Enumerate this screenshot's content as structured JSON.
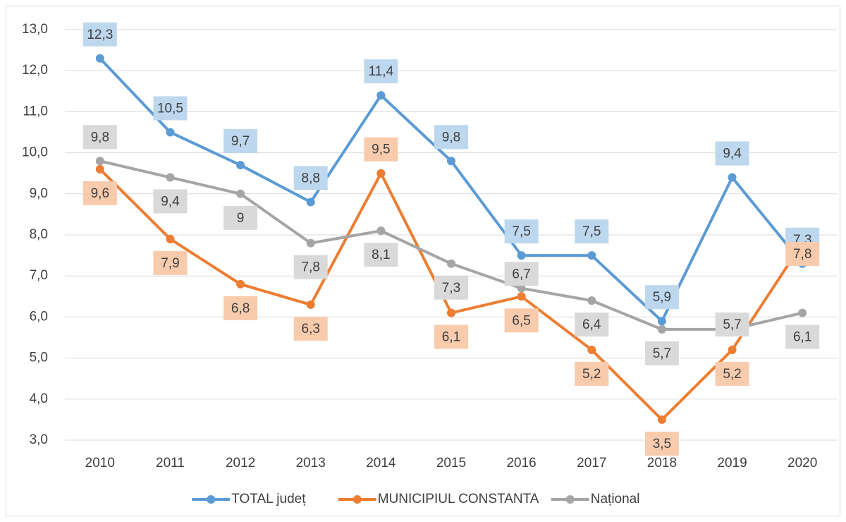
{
  "chart_data": {
    "type": "line",
    "categories": [
      "2010",
      "2011",
      "2012",
      "2013",
      "2014",
      "2015",
      "2016",
      "2017",
      "2018",
      "2019",
      "2020"
    ],
    "series": [
      {
        "name": "TOTAL județ",
        "color": "#5b9bd5",
        "label_fill": "#bdd7ee",
        "values": [
          12.3,
          10.5,
          9.7,
          8.8,
          11.4,
          9.8,
          7.5,
          7.5,
          5.9,
          9.4,
          7.3
        ],
        "value_labels": [
          "12,3",
          "10,5",
          "9,7",
          "8,8",
          "11,4",
          "9,8",
          "7,5",
          "7,5",
          "5,9",
          "9,4",
          "7,3"
        ]
      },
      {
        "name": "MUNICIPIUL CONSTANTA",
        "color": "#ed7d31",
        "label_fill": "#f8cbad",
        "values": [
          9.6,
          7.9,
          6.8,
          6.3,
          9.5,
          6.1,
          6.5,
          5.2,
          3.5,
          5.2,
          7.8
        ],
        "value_labels": [
          "9,6",
          "7,9",
          "6,8",
          "6,3",
          "9,5",
          "6,1",
          "6,5",
          "5,2",
          "3,5",
          "5,2",
          "7,8"
        ]
      },
      {
        "name": "Național",
        "color": "#a5a5a5",
        "label_fill": "#d9d9d9",
        "values": [
          9.8,
          9.4,
          9,
          7.8,
          8.1,
          7.3,
          6.7,
          6.4,
          5.7,
          5.7,
          6.1
        ],
        "value_labels": [
          "9,8",
          "9,4",
          "9",
          "7,8",
          "8,1",
          "7,3",
          "6,7",
          "6,4",
          "5,7",
          "5,7",
          "6,1"
        ]
      }
    ],
    "ylim": [
      3,
      13
    ],
    "yticks": [
      {
        "value": 3,
        "label": "3,0"
      },
      {
        "value": 4,
        "label": "4,0"
      },
      {
        "value": 5,
        "label": "5,0"
      },
      {
        "value": 6,
        "label": "6,0"
      },
      {
        "value": 7,
        "label": "7,0"
      },
      {
        "value": 8,
        "label": "8,0"
      },
      {
        "value": 9,
        "label": "9,0"
      },
      {
        "value": 10,
        "label": "10,0"
      },
      {
        "value": 11,
        "label": "11,0"
      },
      {
        "value": 12,
        "label": "12,0"
      },
      {
        "value": 13,
        "label": "13,0"
      }
    ],
    "grid": true,
    "legend": "bottom"
  }
}
